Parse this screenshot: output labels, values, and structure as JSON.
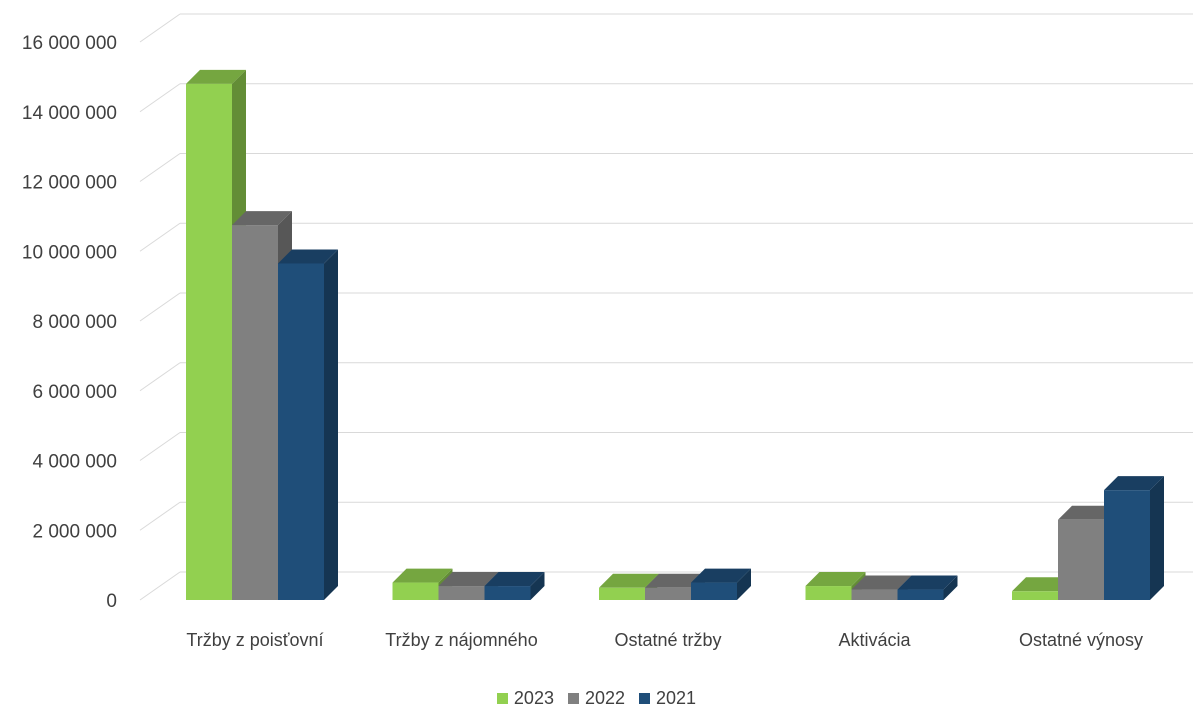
{
  "chart_data": {
    "type": "bar",
    "style": "3d-clustered-column",
    "categories": [
      "Tržby z poisťovní",
      "Tržby z nájomného",
      "Ostatné tržby",
      "Aktivácia",
      "Ostatné výnosy"
    ],
    "series": [
      {
        "name": "2023",
        "color": "#92d050",
        "values": [
          14800000,
          500000,
          350000,
          400000,
          250000
        ]
      },
      {
        "name": "2022",
        "color": "#808080",
        "values": [
          10750000,
          400000,
          350000,
          300000,
          2300000
        ]
      },
      {
        "name": "2021",
        "color": "#1f4e79",
        "values": [
          9650000,
          400000,
          500000,
          300000,
          3150000
        ]
      }
    ],
    "ylim": [
      0,
      16000000
    ],
    "yticks": [
      0,
      2000000,
      4000000,
      6000000,
      8000000,
      10000000,
      12000000,
      14000000,
      16000000
    ],
    "ytick_labels": [
      "0",
      "2 000 000",
      "4 000 000",
      "6 000 000",
      "8 000 000",
      "10 000 000",
      "12 000 000",
      "14 000 000",
      "16 000 000"
    ],
    "grid": true,
    "legend_position": "bottom",
    "title": "",
    "xlabel": "",
    "ylabel": ""
  }
}
